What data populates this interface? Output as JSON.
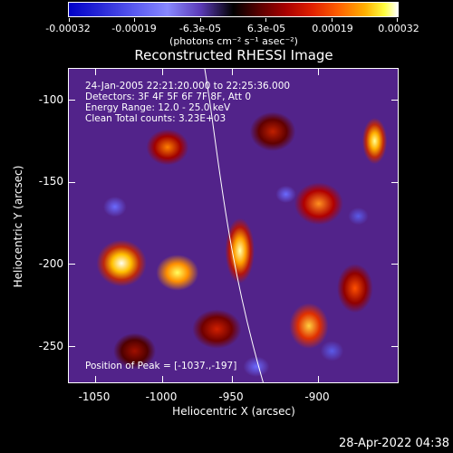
{
  "colorbar": {
    "tick_labels": [
      "-0.00032",
      "-0.00019",
      "-6.3e-05",
      "6.3e-05",
      "0.00019",
      "0.00032"
    ],
    "units": "(photons cm⁻² s⁻¹ asec⁻²)"
  },
  "title": "Reconstructed RHESSI Image",
  "info": {
    "time_range": "24-Jan-2005 22:21:20.000 to 22:25:36.000",
    "detectors": "Detectors: 3F 4F 5F 6F 7F 8F, Att 0",
    "energy": "Energy Range: 12.0 - 25.0 keV",
    "algorithm": "Clean     Total counts: 3.23E+03",
    "peak": "Position of Peak = [-1037.,-197]"
  },
  "axes": {
    "x_title": "Heliocentric X (arcsec)",
    "y_title": "Heliocentric Y (arcsec)",
    "x_tick_labels": [
      "-1050",
      "-1000",
      "-950",
      "-900"
    ],
    "y_tick_labels": [
      "-100",
      "-150",
      "-200",
      "-250"
    ],
    "x_range": [
      -1052,
      -865
    ],
    "y_range": [
      -272,
      -80
    ]
  },
  "timestamp": "28-Apr-2022 04:38",
  "colors": {
    "background": "#000000",
    "limb_line": "#ffffff",
    "background_emission": "#52238a"
  }
}
